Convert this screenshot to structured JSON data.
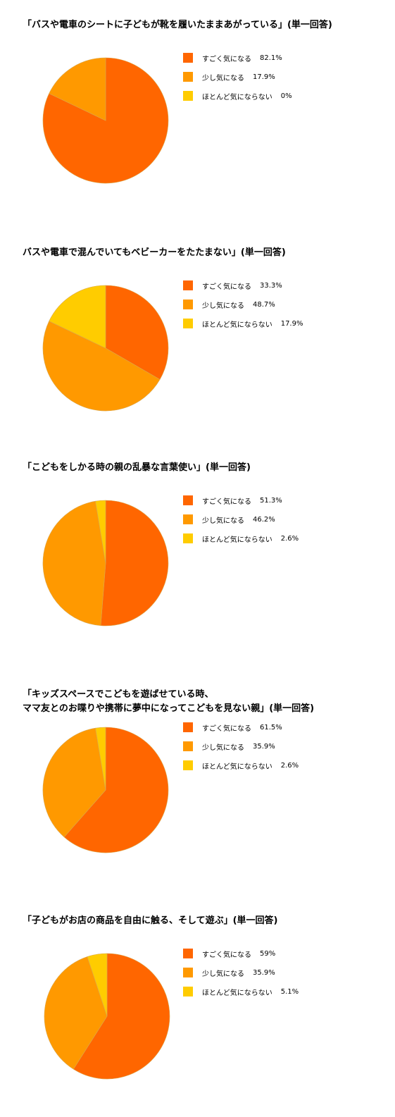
{
  "colors": {
    "very": "#FF6600",
    "somewhat": "#FF9900",
    "not": "#FFCC00"
  },
  "chart_data": [
    {
      "type": "pie",
      "title": "「バスや電車のシートに子どもが靴を履いたままあがっている」(単一回答)",
      "categories": [
        "すごく気になる",
        "少し気になる",
        "ほとんど気にならない"
      ],
      "values": [
        82.1,
        17.9,
        0
      ],
      "labels": [
        "82.1%",
        "17.9%",
        "0%"
      ]
    },
    {
      "type": "pie",
      "title": "バスや電車で混んでいてもベビーカーをたたまない」(単一回答)",
      "categories": [
        "すごく気になる",
        "少し気になる",
        "ほとんど気にならない"
      ],
      "values": [
        33.3,
        48.7,
        17.9
      ],
      "labels": [
        "33.3%",
        "48.7%",
        "17.9%"
      ]
    },
    {
      "type": "pie",
      "title": "「こどもをしかる時の親の乱暴な言葉使い」(単一回答)",
      "categories": [
        "すごく気になる",
        "少し気になる",
        "ほとんど気にならない"
      ],
      "values": [
        51.3,
        46.2,
        2.6
      ],
      "labels": [
        "51.3%",
        "46.2%",
        "2.6%"
      ]
    },
    {
      "type": "pie",
      "title": "「キッズスペースでこどもを遊ばせている時、\nママ友とのお喋りや携帯に夢中になってこどもを見ない親」(単一回答)",
      "categories": [
        "すごく気になる",
        "少し気になる",
        "ほとんど気にならない"
      ],
      "values": [
        61.5,
        35.9,
        2.6
      ],
      "labels": [
        "61.5%",
        "35.9%",
        "2.6%"
      ]
    },
    {
      "type": "pie",
      "title": "「子どもがお店の商品を自由に触る、そして遊ぶ」(単一回答)",
      "categories": [
        "すごく気になる",
        "少し気になる",
        "ほとんど気にならない"
      ],
      "values": [
        59,
        35.9,
        5.1
      ],
      "labels": [
        "59%",
        "35.9%",
        "5.1%"
      ]
    }
  ]
}
